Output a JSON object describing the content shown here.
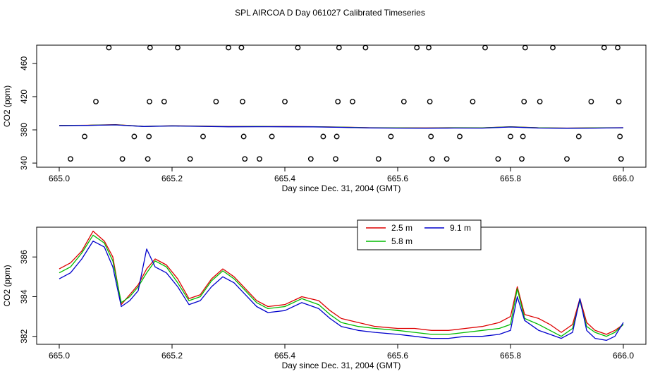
{
  "title": "SPL AIRCOA D  Day 061027  Calibrated Timeseries",
  "colors": {
    "s1": "#dd0000",
    "s2": "#00bb00",
    "s3": "#0000cc"
  },
  "chart_data": [
    {
      "type": "line",
      "panel": "top",
      "xlabel": "Day since Dec. 31, 2004 (GMT)",
      "ylabel": "CO2 (ppm)",
      "xlim": [
        665.0,
        666.0
      ],
      "ylim": [
        335,
        482
      ],
      "xticks": [
        "665.0",
        "665.2",
        "665.4",
        "665.6",
        "665.8",
        "666.0"
      ],
      "yticks": [
        "340",
        "380",
        "420",
        "460"
      ],
      "xtick_values": [
        665.0,
        665.2,
        665.4,
        665.6,
        665.8,
        666.0
      ],
      "ytick_values": [
        340,
        380,
        420,
        460
      ],
      "series": [
        {
          "name": "2.5 m",
          "color": "#dd0000",
          "x": [
            665.0,
            665.05,
            665.1,
            665.15,
            665.2,
            665.25,
            665.3,
            665.35,
            665.4,
            665.45,
            665.5,
            665.55,
            665.6,
            665.65,
            665.7,
            665.75,
            665.8,
            665.85,
            665.9,
            665.95,
            666.0
          ],
          "y": [
            385.3,
            385.6,
            386.2,
            384.2,
            384.9,
            384.5,
            384.0,
            384.1,
            384.0,
            383.9,
            383.3,
            382.6,
            382.4,
            382.3,
            382.6,
            382.5,
            383.8,
            382.5,
            382.2,
            382.4,
            382.6
          ]
        },
        {
          "name": "5.8 m",
          "color": "#00bb00",
          "x": [
            665.0,
            665.05,
            665.1,
            665.15,
            665.2,
            665.25,
            665.3,
            665.35,
            665.4,
            665.45,
            665.5,
            665.55,
            665.6,
            665.65,
            665.7,
            665.75,
            665.8,
            665.85,
            665.9,
            665.95,
            666.0
          ],
          "y": [
            385.2,
            385.5,
            386.1,
            384.1,
            384.8,
            384.4,
            383.9,
            384.0,
            383.9,
            383.8,
            383.2,
            382.5,
            382.3,
            382.2,
            382.4,
            382.3,
            383.6,
            382.4,
            382.1,
            382.3,
            382.5
          ]
        },
        {
          "name": "9.1 m",
          "color": "#0000cc",
          "x": [
            665.0,
            665.05,
            665.1,
            665.15,
            665.2,
            665.25,
            665.3,
            665.35,
            665.4,
            665.45,
            665.5,
            665.55,
            665.6,
            665.65,
            665.7,
            665.75,
            665.8,
            665.85,
            665.9,
            665.95,
            666.0
          ],
          "y": [
            385.0,
            385.4,
            386.0,
            384.0,
            384.7,
            384.2,
            383.7,
            383.8,
            383.7,
            383.6,
            383.0,
            382.3,
            382.1,
            382.0,
            382.2,
            382.1,
            383.4,
            382.2,
            381.9,
            382.1,
            382.6
          ]
        }
      ],
      "scatter_points": [
        {
          "x": 665.02,
          "y": 345
        },
        {
          "x": 665.045,
          "y": 372
        },
        {
          "x": 665.065,
          "y": 414
        },
        {
          "x": 665.088,
          "y": 479
        },
        {
          "x": 665.112,
          "y": 345
        },
        {
          "x": 665.133,
          "y": 372
        },
        {
          "x": 665.157,
          "y": 345
        },
        {
          "x": 665.159,
          "y": 372
        },
        {
          "x": 665.16,
          "y": 414
        },
        {
          "x": 665.161,
          "y": 479
        },
        {
          "x": 665.186,
          "y": 414
        },
        {
          "x": 665.21,
          "y": 479
        },
        {
          "x": 665.232,
          "y": 345
        },
        {
          "x": 665.255,
          "y": 372
        },
        {
          "x": 665.278,
          "y": 414
        },
        {
          "x": 665.3,
          "y": 479
        },
        {
          "x": 665.323,
          "y": 479
        },
        {
          "x": 665.325,
          "y": 414
        },
        {
          "x": 665.327,
          "y": 372
        },
        {
          "x": 665.329,
          "y": 345
        },
        {
          "x": 665.355,
          "y": 345
        },
        {
          "x": 665.377,
          "y": 372
        },
        {
          "x": 665.4,
          "y": 414
        },
        {
          "x": 665.423,
          "y": 479
        },
        {
          "x": 665.446,
          "y": 345
        },
        {
          "x": 665.468,
          "y": 372
        },
        {
          "x": 665.49,
          "y": 345
        },
        {
          "x": 665.492,
          "y": 372
        },
        {
          "x": 665.494,
          "y": 414
        },
        {
          "x": 665.496,
          "y": 479
        },
        {
          "x": 665.52,
          "y": 414
        },
        {
          "x": 665.543,
          "y": 479
        },
        {
          "x": 665.566,
          "y": 345
        },
        {
          "x": 665.588,
          "y": 372
        },
        {
          "x": 665.611,
          "y": 414
        },
        {
          "x": 665.634,
          "y": 479
        },
        {
          "x": 665.655,
          "y": 479
        },
        {
          "x": 665.657,
          "y": 414
        },
        {
          "x": 665.659,
          "y": 372
        },
        {
          "x": 665.661,
          "y": 345
        },
        {
          "x": 665.687,
          "y": 345
        },
        {
          "x": 665.71,
          "y": 372
        },
        {
          "x": 665.733,
          "y": 414
        },
        {
          "x": 665.755,
          "y": 479
        },
        {
          "x": 665.778,
          "y": 345
        },
        {
          "x": 665.8,
          "y": 372
        },
        {
          "x": 665.82,
          "y": 345
        },
        {
          "x": 665.822,
          "y": 372
        },
        {
          "x": 665.824,
          "y": 414
        },
        {
          "x": 665.826,
          "y": 479
        },
        {
          "x": 665.852,
          "y": 414
        },
        {
          "x": 665.875,
          "y": 479
        },
        {
          "x": 665.9,
          "y": 345
        },
        {
          "x": 665.921,
          "y": 372
        },
        {
          "x": 665.943,
          "y": 414
        },
        {
          "x": 665.966,
          "y": 479
        },
        {
          "x": 665.99,
          "y": 479
        },
        {
          "x": 665.992,
          "y": 414
        },
        {
          "x": 665.994,
          "y": 372
        },
        {
          "x": 665.996,
          "y": 345
        }
      ]
    },
    {
      "type": "line",
      "panel": "bottom",
      "xlabel": "Day since Dec. 31, 2004 (GMT)",
      "ylabel": "CO2 (ppm)",
      "xlim": [
        665.0,
        666.0
      ],
      "ylim": [
        381.6,
        387.5
      ],
      "xticks": [
        "665.0",
        "665.2",
        "665.4",
        "665.6",
        "665.8",
        "666.0"
      ],
      "yticks": [
        "382",
        "384",
        "386"
      ],
      "xtick_values": [
        665.0,
        665.2,
        665.4,
        665.6,
        665.8,
        666.0
      ],
      "ytick_values": [
        382,
        384,
        386
      ],
      "legend": {
        "placement": "top-center",
        "entries": [
          "2.5 m",
          "5.8 m",
          "9.1 m"
        ]
      },
      "series": [
        {
          "name": "2.5 m",
          "color": "#dd0000",
          "x": [
            665.0,
            665.02,
            665.04,
            665.06,
            665.08,
            665.095,
            665.11,
            665.125,
            665.14,
            665.155,
            665.17,
            665.19,
            665.21,
            665.23,
            665.25,
            665.27,
            665.29,
            665.31,
            665.33,
            665.35,
            665.37,
            665.4,
            665.43,
            665.46,
            665.48,
            665.5,
            665.53,
            665.56,
            665.6,
            665.63,
            665.66,
            665.69,
            665.72,
            665.75,
            665.78,
            665.8,
            665.812,
            665.825,
            665.85,
            665.87,
            665.89,
            665.91,
            665.923,
            665.935,
            665.95,
            665.97,
            665.985,
            666.0
          ],
          "y": [
            385.4,
            385.7,
            386.3,
            387.3,
            386.8,
            386.0,
            383.6,
            384.1,
            384.6,
            385.4,
            385.9,
            385.6,
            384.9,
            383.9,
            384.1,
            384.9,
            385.4,
            385.0,
            384.4,
            383.8,
            383.5,
            383.6,
            384.0,
            383.8,
            383.3,
            382.9,
            382.7,
            382.5,
            382.4,
            382.4,
            382.3,
            382.3,
            382.4,
            382.5,
            382.7,
            383.0,
            384.5,
            383.1,
            382.9,
            382.6,
            382.2,
            382.6,
            383.9,
            382.7,
            382.3,
            382.1,
            382.3,
            382.6
          ]
        },
        {
          "name": "5.8 m",
          "color": "#00bb00",
          "x": [
            665.0,
            665.02,
            665.04,
            665.06,
            665.08,
            665.095,
            665.11,
            665.125,
            665.14,
            665.155,
            665.17,
            665.19,
            665.21,
            665.23,
            665.25,
            665.27,
            665.29,
            665.31,
            665.33,
            665.35,
            665.37,
            665.4,
            665.43,
            665.46,
            665.48,
            665.5,
            665.53,
            665.56,
            665.6,
            665.63,
            665.66,
            665.69,
            665.72,
            665.75,
            665.78,
            665.8,
            665.812,
            665.825,
            665.85,
            665.87,
            665.89,
            665.91,
            665.923,
            665.935,
            665.95,
            665.97,
            665.985,
            666.0
          ],
          "y": [
            385.2,
            385.5,
            386.2,
            387.1,
            386.7,
            385.8,
            383.7,
            384.0,
            384.5,
            385.2,
            385.8,
            385.5,
            384.7,
            383.8,
            384.0,
            384.8,
            385.3,
            384.9,
            384.3,
            383.7,
            383.4,
            383.5,
            383.9,
            383.6,
            383.1,
            382.7,
            382.5,
            382.4,
            382.3,
            382.2,
            382.1,
            382.1,
            382.2,
            382.3,
            382.4,
            382.6,
            384.4,
            382.9,
            382.6,
            382.3,
            382.0,
            382.4,
            383.8,
            382.5,
            382.2,
            382.0,
            382.2,
            382.6
          ]
        },
        {
          "name": "9.1 m",
          "color": "#0000cc",
          "x": [
            665.0,
            665.02,
            665.04,
            665.06,
            665.08,
            665.095,
            665.11,
            665.125,
            665.14,
            665.155,
            665.17,
            665.19,
            665.21,
            665.23,
            665.25,
            665.27,
            665.29,
            665.31,
            665.33,
            665.35,
            665.37,
            665.4,
            665.43,
            665.46,
            665.48,
            665.5,
            665.53,
            665.56,
            665.6,
            665.63,
            665.66,
            665.69,
            665.72,
            665.75,
            665.78,
            665.8,
            665.812,
            665.825,
            665.85,
            665.87,
            665.89,
            665.91,
            665.923,
            665.935,
            665.95,
            665.97,
            665.985,
            666.0
          ],
          "y": [
            384.9,
            385.2,
            385.9,
            386.8,
            386.5,
            385.5,
            383.5,
            383.8,
            384.3,
            386.4,
            385.5,
            385.2,
            384.5,
            383.6,
            383.8,
            384.5,
            385.0,
            384.7,
            384.1,
            383.5,
            383.2,
            383.3,
            383.7,
            383.4,
            382.9,
            382.5,
            382.3,
            382.2,
            382.1,
            382.0,
            381.9,
            381.9,
            382.0,
            382.0,
            382.1,
            382.3,
            384.0,
            382.8,
            382.3,
            382.1,
            381.9,
            382.2,
            383.9,
            382.3,
            381.9,
            381.8,
            382.0,
            382.7
          ]
        }
      ]
    }
  ]
}
